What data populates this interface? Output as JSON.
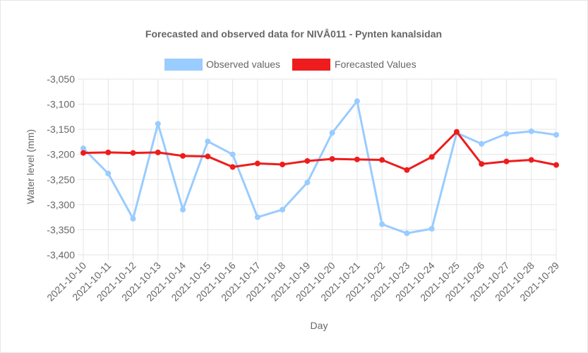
{
  "chart_data": {
    "type": "line",
    "title": "Forecasted and observed data for NIVÅ011 - Pynten kanalsidan",
    "xlabel": "Day",
    "ylabel": "Water level (mm)",
    "ylim": [
      -3400,
      -3050
    ],
    "yticks": [
      -3050,
      -3100,
      -3150,
      -3200,
      -3250,
      -3300,
      -3350,
      -3400
    ],
    "ytick_labels": [
      "-3,050",
      "-3,100",
      "-3,150",
      "-3,200",
      "-3,250",
      "-3,300",
      "-3,350",
      "-3,400"
    ],
    "grid": true,
    "legend_position": "top",
    "categories": [
      "2021-10-10",
      "2021-10-11",
      "2021-10-12",
      "2021-10-13",
      "2021-10-14",
      "2021-10-15",
      "2021-10-16",
      "2021-10-17",
      "2021-10-18",
      "2021-10-19",
      "2021-10-20",
      "2021-10-21",
      "2021-10-22",
      "2021-10-23",
      "2021-10-24",
      "2021-10-25",
      "2021-10-26",
      "2021-10-27",
      "2021-10-28",
      "2021-10-29"
    ],
    "series": [
      {
        "name": "Observed values",
        "color": "#99ccff",
        "values": [
          -3188,
          -3238,
          -3328,
          -3139,
          -3310,
          -3174,
          -3200,
          -3325,
          -3310,
          -3256,
          -3157,
          -3094,
          -3339,
          -3357,
          -3348,
          -3157,
          -3179,
          -3159,
          -3154,
          -3161
        ]
      },
      {
        "name": "Forecasted Values",
        "color": "#ee1c1c",
        "values": [
          -3197,
          -3196,
          -3197,
          -3196,
          -3203,
          -3204,
          -3225,
          -3218,
          -3220,
          -3213,
          -3209,
          -3210,
          -3211,
          -3231,
          -3205,
          -3155,
          -3219,
          -3214,
          -3211,
          -3221
        ]
      }
    ]
  }
}
